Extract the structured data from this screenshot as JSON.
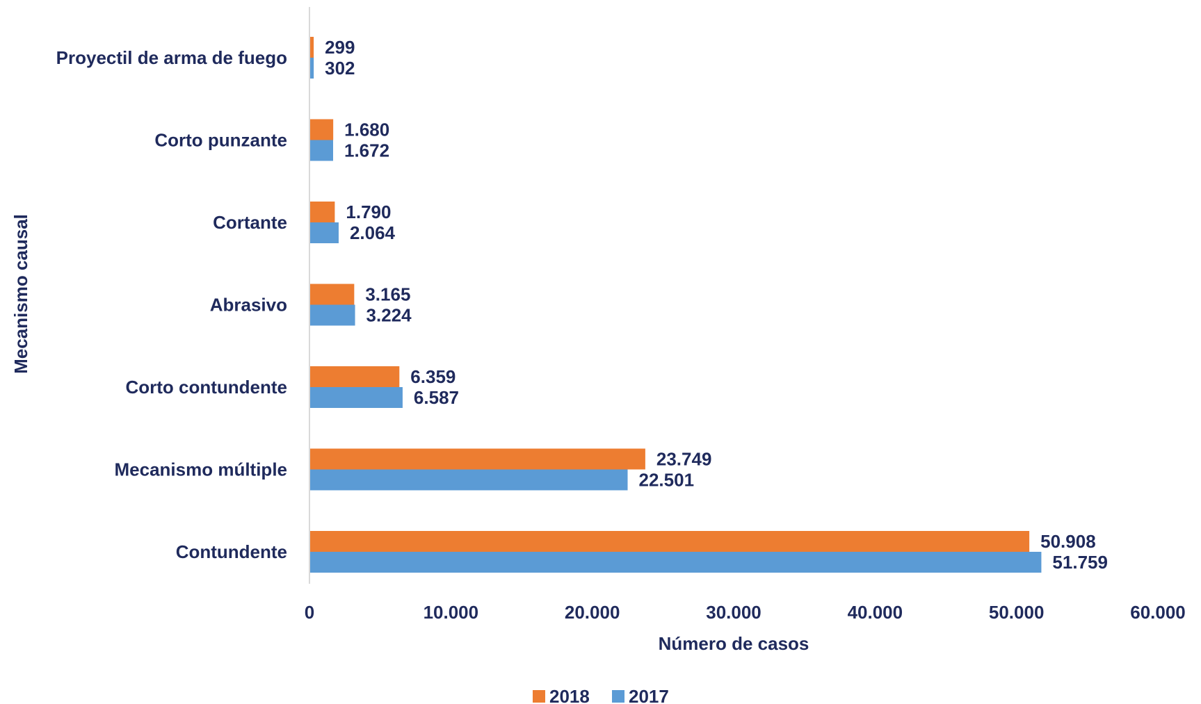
{
  "chart_data": {
    "type": "bar",
    "orientation": "horizontal",
    "categories": [
      "Proyectil de arma de fuego",
      "Corto punzante",
      "Cortante",
      "Abrasivo",
      "Corto contundente",
      "Mecanismo múltiple",
      "Contundente"
    ],
    "series": [
      {
        "name": "2018",
        "color": "#ED7D31",
        "values": [
          299,
          1680,
          1790,
          3165,
          6359,
          23749,
          50908
        ],
        "labels": [
          "299",
          "1.680",
          "1.790",
          "3.165",
          "6.359",
          "23.749",
          "50.908"
        ]
      },
      {
        "name": "2017",
        "color": "#5B9BD5",
        "values": [
          302,
          1672,
          2064,
          3224,
          6587,
          22501,
          51759
        ],
        "labels": [
          "302",
          "1.672",
          "2.064",
          "3.224",
          "6.587",
          "22.501",
          "51.759"
        ]
      }
    ],
    "xlabel": "Número de casos",
    "ylabel": "Mecanismo causal",
    "xlim": [
      0,
      60000
    ],
    "xticks": [
      0,
      10000,
      20000,
      30000,
      40000,
      50000,
      60000
    ],
    "xtick_labels": [
      "0",
      "10.000",
      "20.000",
      "30.000",
      "40.000",
      "50.000",
      "60.000"
    ],
    "grid": false,
    "legend_position": "bottom"
  }
}
